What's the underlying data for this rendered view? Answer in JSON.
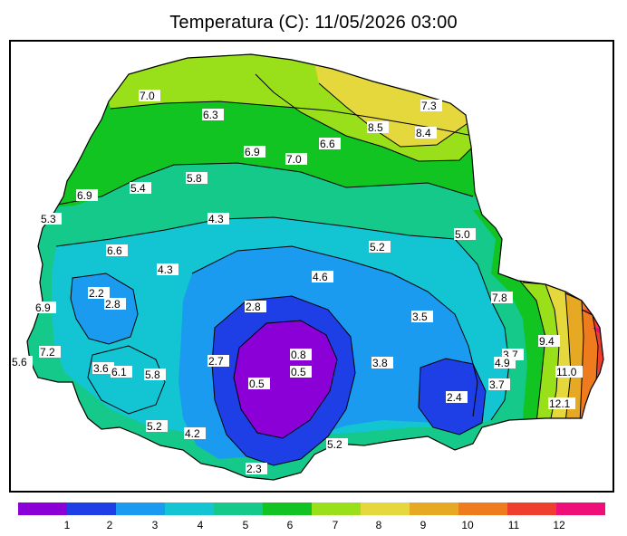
{
  "title": "Temperatura (C): 11/05/2026 03:00",
  "colors": {
    "background": "#ffffff",
    "outline": "#000000",
    "bands": [
      "#8a00d6",
      "#1f3fe6",
      "#1a9bf0",
      "#13c4d2",
      "#14c98a",
      "#11c421",
      "#99e01a",
      "#e4d83c",
      "#e7a923",
      "#ee7b1e",
      "#ee3e2e",
      "#ee0f78"
    ]
  },
  "legend": {
    "ticks": [
      "1",
      "2",
      "3",
      "4",
      "5",
      "6",
      "7",
      "8",
      "9",
      "10",
      "11",
      "12"
    ]
  },
  "labels": [
    {
      "text": "7.0"
    },
    {
      "text": "6.3"
    },
    {
      "text": "7.3"
    },
    {
      "text": "8.5"
    },
    {
      "text": "8.4"
    },
    {
      "text": "6.9"
    },
    {
      "text": "7.0"
    },
    {
      "text": "6.6"
    },
    {
      "text": "5.8"
    },
    {
      "text": "5.4"
    },
    {
      "text": "6.9"
    },
    {
      "text": "5.3"
    },
    {
      "text": "4.3"
    },
    {
      "text": "5.0"
    },
    {
      "text": "5.2"
    },
    {
      "text": "6.6"
    },
    {
      "text": "4.3"
    },
    {
      "text": "4.6"
    },
    {
      "text": "2.2"
    },
    {
      "text": "2.8"
    },
    {
      "text": "6.9"
    },
    {
      "text": "2.8"
    },
    {
      "text": "7.8"
    },
    {
      "text": "3.5"
    },
    {
      "text": "7.2"
    },
    {
      "text": "5.6"
    },
    {
      "text": "3.6"
    },
    {
      "text": "6.1"
    },
    {
      "text": "5.8"
    },
    {
      "text": "2.7"
    },
    {
      "text": "0.8"
    },
    {
      "text": "0.5"
    },
    {
      "text": "0.5"
    },
    {
      "text": "3.8"
    },
    {
      "text": "9.4"
    },
    {
      "text": "3.7"
    },
    {
      "text": "4.9"
    },
    {
      "text": "11.0"
    },
    {
      "text": "3.7"
    },
    {
      "text": "2.4"
    },
    {
      "text": "12.1"
    },
    {
      "text": "5.2"
    },
    {
      "text": "4.2"
    },
    {
      "text": "5.2"
    },
    {
      "text": "2.3"
    }
  ]
}
